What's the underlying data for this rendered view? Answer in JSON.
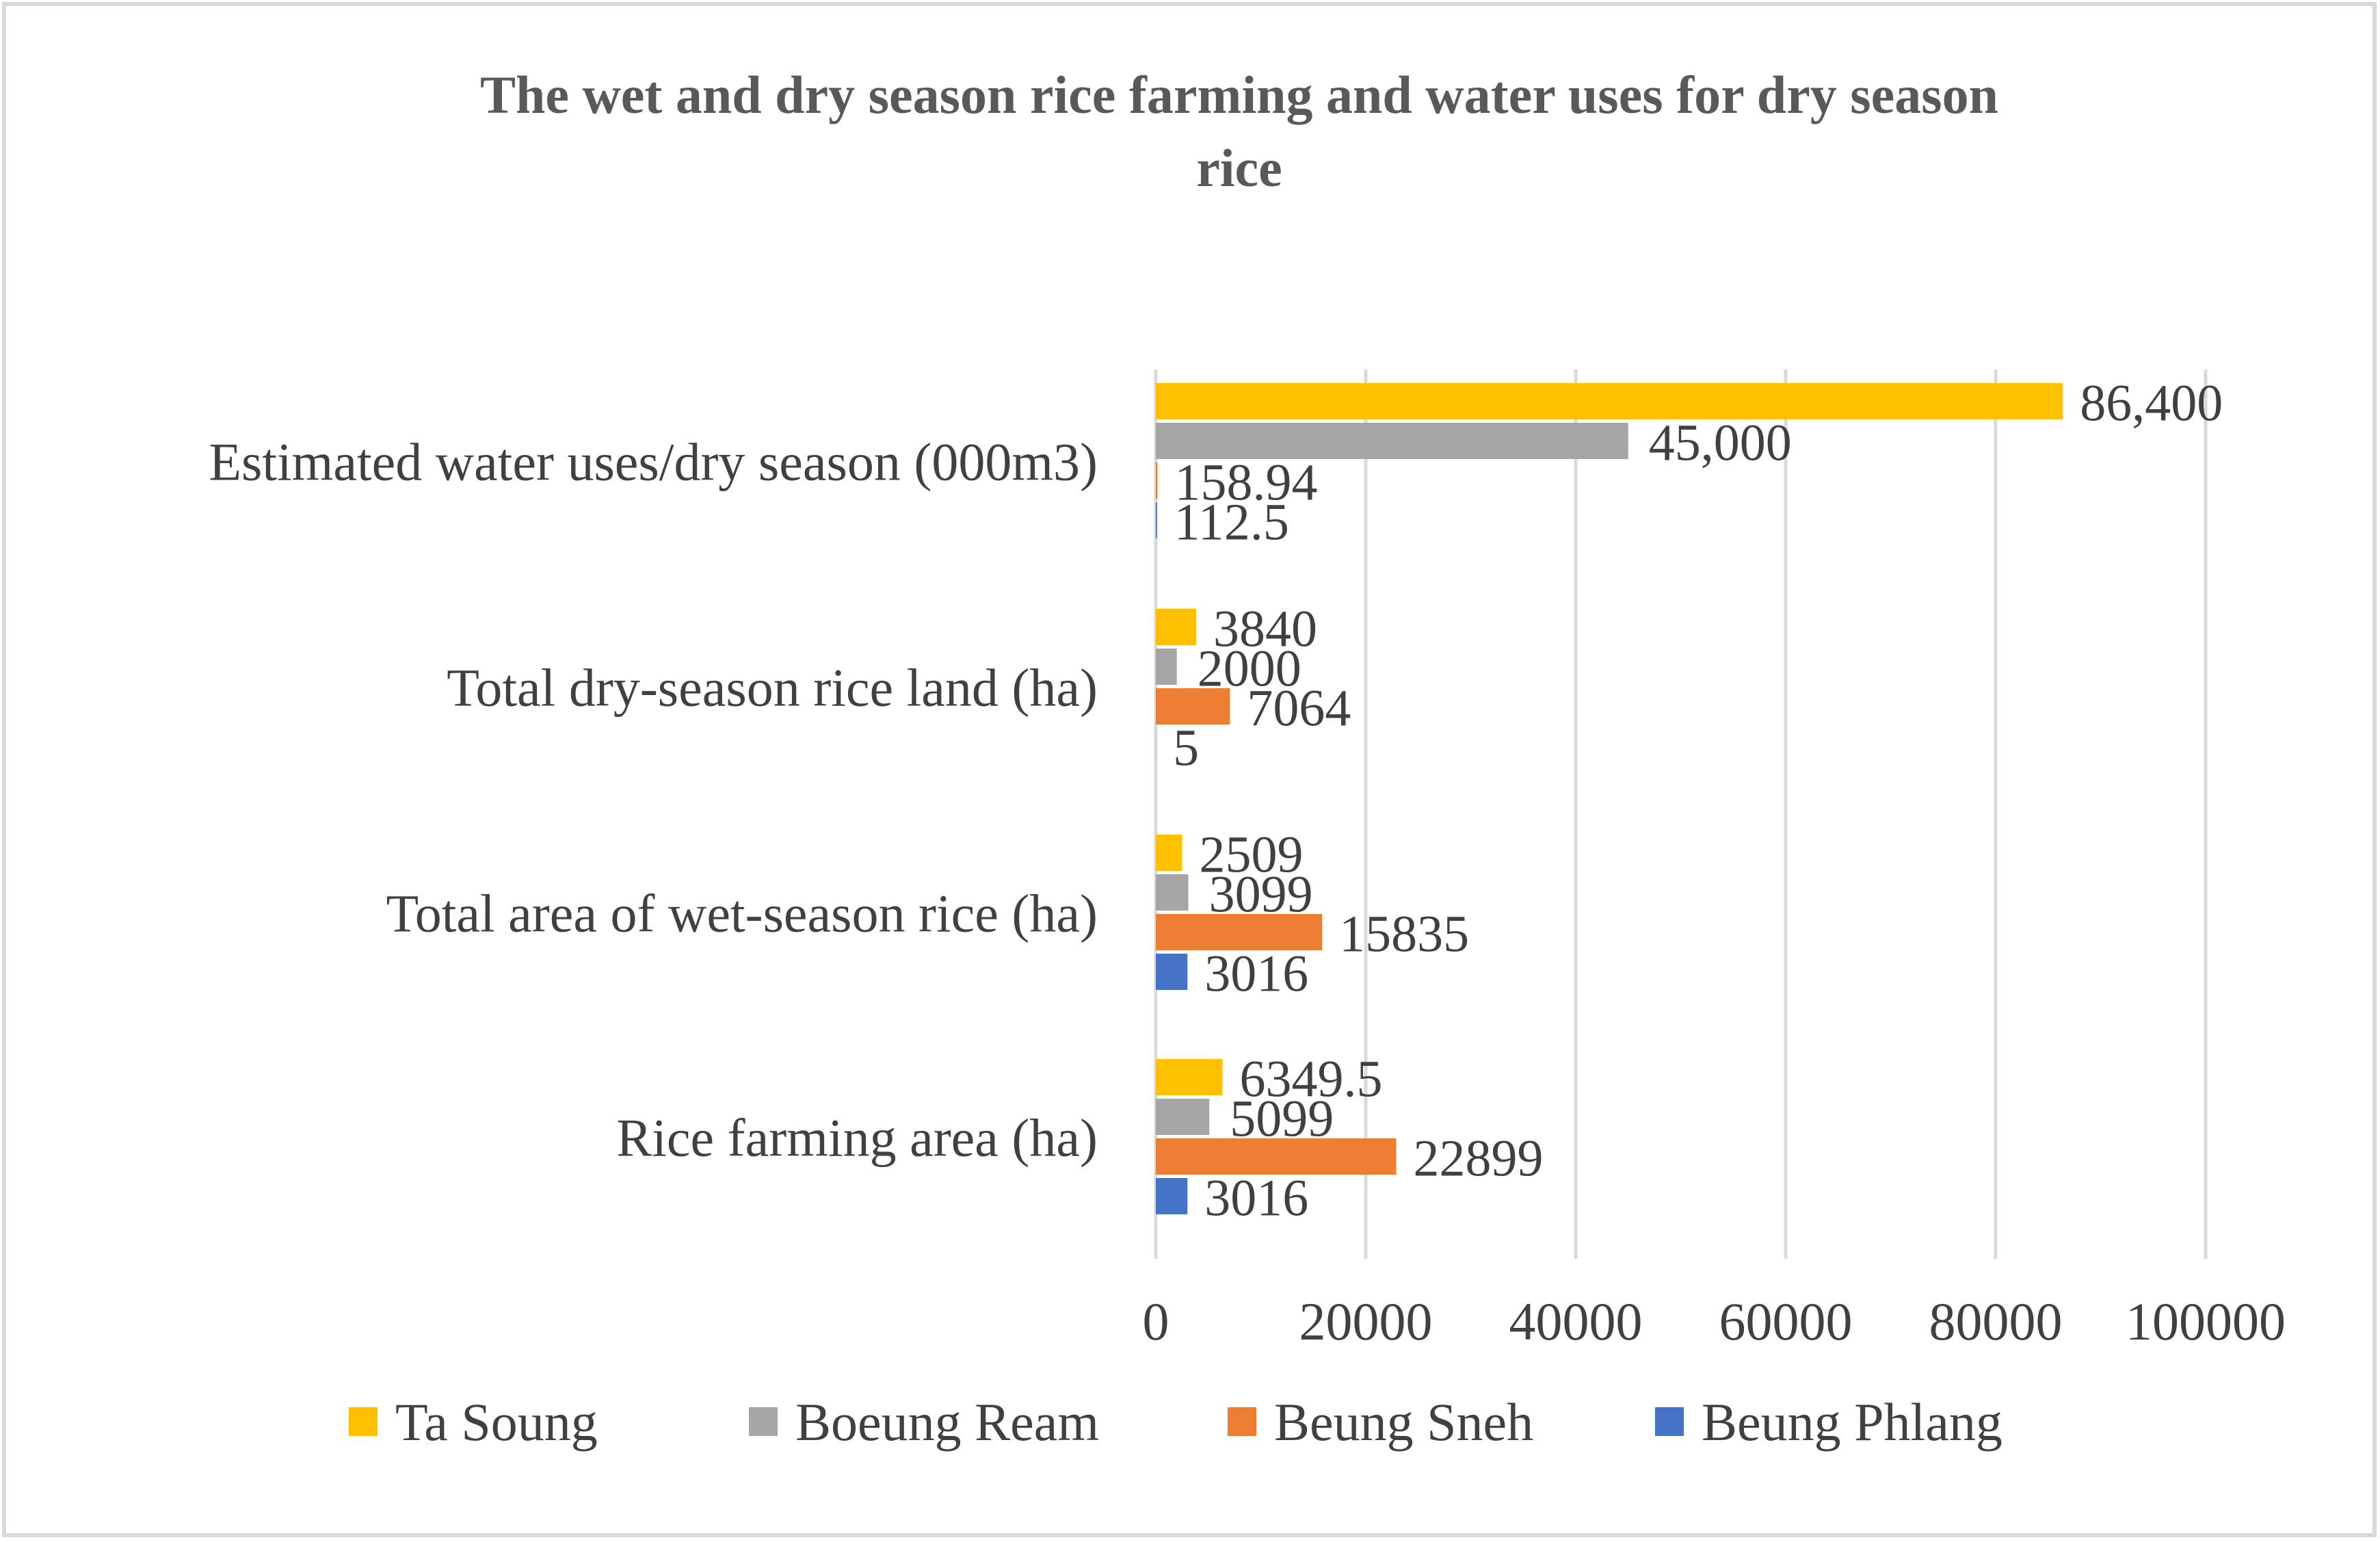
{
  "chart_data": {
    "type": "bar",
    "orientation": "horizontal",
    "title_lines": [
      "The wet and dry season rice farming and water uses for dry season",
      "rice"
    ],
    "categories": [
      "Estimated water uses/dry season (000m3)",
      "Total dry-season rice land (ha)",
      "Total area of wet-season rice (ha)",
      "Rice farming area (ha)"
    ],
    "series": [
      {
        "name": "Ta Soung",
        "color": "#FFC000",
        "values": [
          86400,
          3840,
          2509,
          6349.5
        ],
        "labels": [
          "86,400",
          "3840",
          "2509",
          "6349.5"
        ]
      },
      {
        "name": "Boeung Ream",
        "color": "#A5A5A5",
        "values": [
          45000,
          2000,
          3099,
          5099
        ],
        "labels": [
          "45,000",
          "2000",
          "3099",
          "5099"
        ]
      },
      {
        "name": "Beung Sneh",
        "color": "#ED7D31",
        "values": [
          158.94,
          7064,
          15835,
          22899
        ],
        "labels": [
          "158.94",
          "7064",
          "15835",
          "22899"
        ]
      },
      {
        "name": "Beung Phlang",
        "color": "#4472C4",
        "values": [
          112.5,
          5,
          3016,
          3016
        ],
        "labels": [
          "112.5",
          "5",
          "3016",
          "3016"
        ]
      }
    ],
    "xlim": [
      0,
      100000
    ],
    "x_ticks": [
      0,
      20000,
      40000,
      60000,
      80000,
      100000
    ],
    "x_tick_labels": [
      "0",
      "20000",
      "40000",
      "60000",
      "80000",
      "100000"
    ],
    "grid": true,
    "legend_position": "bottom",
    "xlabel": "",
    "ylabel": ""
  },
  "colors": {
    "grid": "#D9D9D9",
    "axis_text": "#404040",
    "title": "#595959",
    "frame": "#D9D9D9"
  }
}
